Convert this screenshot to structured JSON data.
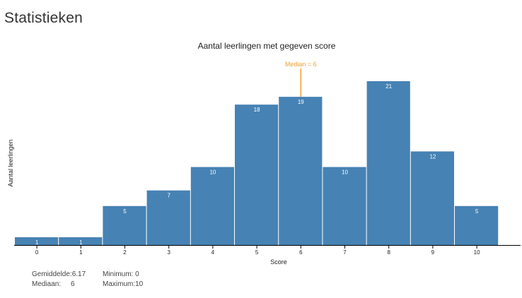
{
  "page": {
    "title": "Statistieken"
  },
  "chart_data": {
    "type": "bar",
    "title": "Aantal leerlingen met gegeven score",
    "xlabel": "Score",
    "ylabel": "Aantal leerlingen",
    "categories": [
      "0",
      "1",
      "2",
      "3",
      "4",
      "5",
      "6",
      "7",
      "8",
      "9",
      "10"
    ],
    "values": [
      1,
      1,
      5,
      7,
      10,
      18,
      19,
      10,
      21,
      12,
      5
    ],
    "ylim": [
      0,
      21
    ],
    "bar_color": "#4682b4",
    "label_color": "#ffffff",
    "grid": false,
    "median_marker": {
      "value": 6,
      "label": "Median = 6",
      "color": "#f0a030"
    }
  },
  "stats": {
    "mean_label": "Gemiddelde:",
    "mean_value": "6.17",
    "median_label": "Mediaan:",
    "median_value": "6",
    "min_label": "Minimum:",
    "min_value": "0",
    "max_label": "Maximum:",
    "max_value": "10"
  }
}
